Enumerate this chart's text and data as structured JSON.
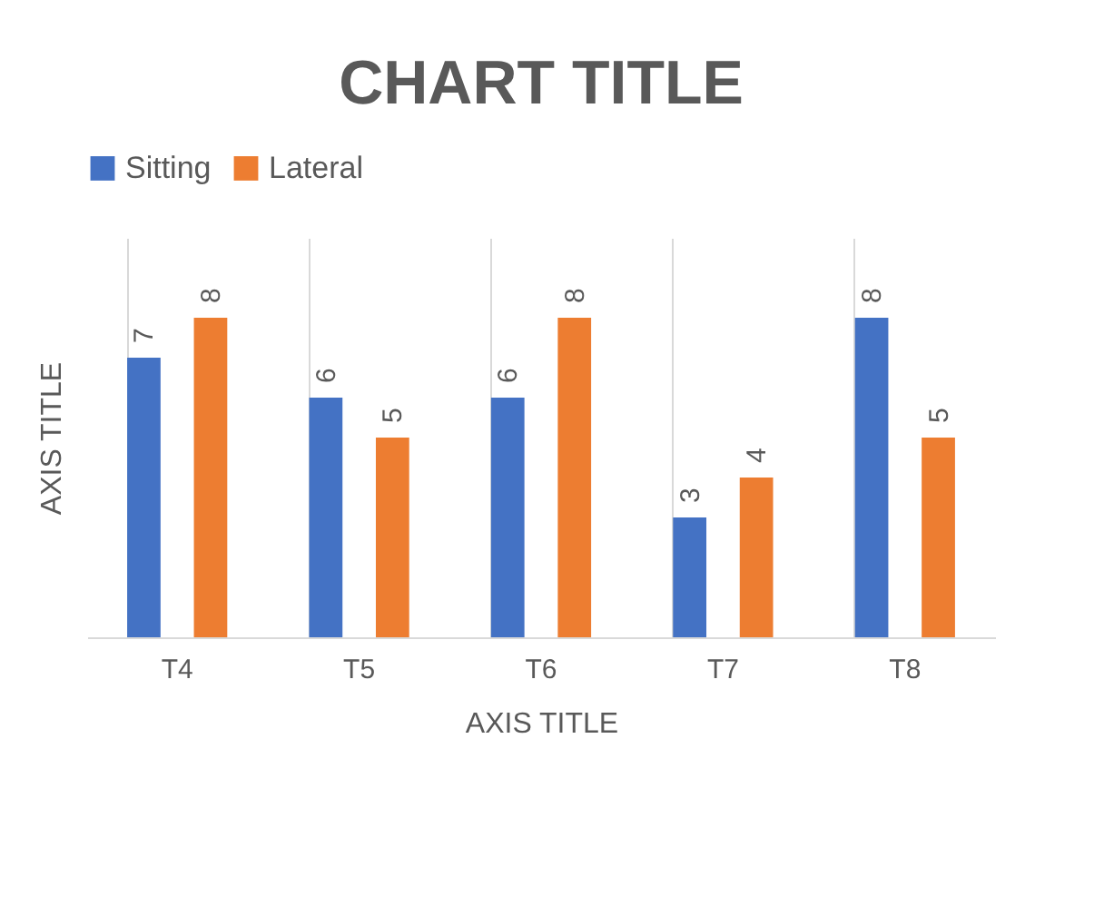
{
  "chart_data": {
    "type": "bar",
    "title": "CHART TITLE",
    "xlabel": "AXIS TITLE",
    "ylabel": "AXIS TITLE",
    "categories": [
      "T4",
      "T5",
      "T6",
      "T7",
      "T8"
    ],
    "series": [
      {
        "name": "Sitting",
        "color": "#4472c4",
        "values": [
          7,
          6,
          6,
          3,
          8
        ]
      },
      {
        "name": "Lateral",
        "color": "#ed7d31",
        "values": [
          8,
          5,
          8,
          4,
          5
        ]
      }
    ],
    "ylim": [
      0,
      10
    ],
    "data_labels": true,
    "grid": "x",
    "legend": "top",
    "tick_labels": "x"
  }
}
